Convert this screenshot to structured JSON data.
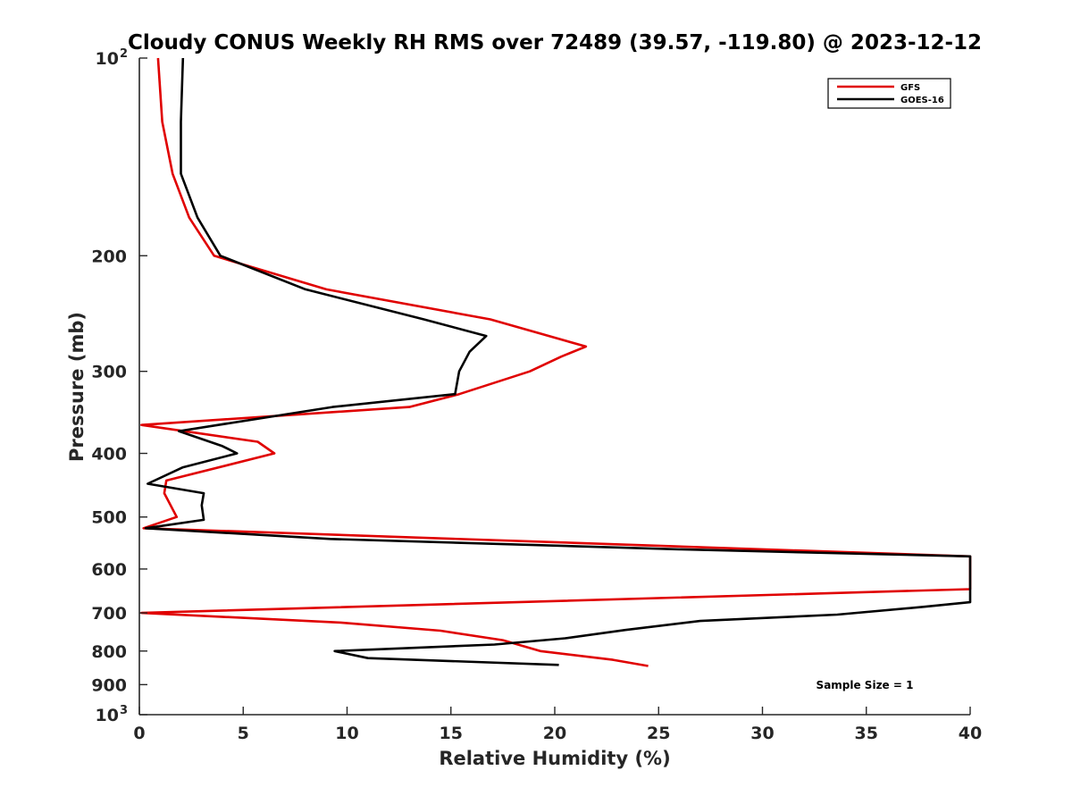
{
  "chart_data": {
    "type": "line",
    "title": "Cloudy CONUS Weekly RH RMS over 72489 (39.57, -119.80) @ 2023-12-12",
    "xlabel": "Relative Humidity (%)",
    "ylabel": "Pressure (mb)",
    "xlim": [
      0,
      40
    ],
    "ylim": [
      100,
      1000
    ],
    "y_scale": "log",
    "y_reversed": true,
    "x_ticks": [
      0,
      5,
      10,
      15,
      20,
      25,
      30,
      35,
      40
    ],
    "x_tick_labels": [
      "0",
      "5",
      "10",
      "15",
      "20",
      "25",
      "30",
      "35",
      "40"
    ],
    "y_ticks": [
      100,
      200,
      300,
      400,
      500,
      600,
      700,
      800,
      900,
      1000
    ],
    "y_tick_labels": [
      {
        "base": "10",
        "exp": "2"
      },
      {
        "base": "200"
      },
      {
        "base": "300"
      },
      {
        "base": "400"
      },
      {
        "base": "500"
      },
      {
        "base": "600"
      },
      {
        "base": "700"
      },
      {
        "base": "800"
      },
      {
        "base": "900"
      },
      {
        "base": "10",
        "exp": "3"
      }
    ],
    "grid": false,
    "legend_position": "top-right",
    "annotation": "Sample Size = 1",
    "series": [
      {
        "name": "GFS",
        "color": "#e00000",
        "points": [
          [
            0.9,
            100
          ],
          [
            1.1,
            125
          ],
          [
            1.6,
            150
          ],
          [
            2.4,
            175
          ],
          [
            3.6,
            200
          ],
          [
            9.0,
            225
          ],
          [
            16.9,
            250
          ],
          [
            21.5,
            275
          ],
          [
            20.3,
            285
          ],
          [
            18.8,
            300
          ],
          [
            15.4,
            325
          ],
          [
            13.0,
            340
          ],
          [
            0.1,
            362
          ],
          [
            5.7,
            384
          ],
          [
            6.5,
            400
          ],
          [
            1.3,
            440
          ],
          [
            1.2,
            460
          ],
          [
            1.8,
            500
          ],
          [
            0.2,
            520
          ],
          [
            40.0,
            574
          ],
          [
            40.0,
            644
          ],
          [
            0.1,
            700
          ],
          [
            9.7,
            724
          ],
          [
            14.5,
            745
          ],
          [
            17.5,
            770
          ],
          [
            19.3,
            800
          ],
          [
            22.8,
            825
          ],
          [
            24.5,
            843
          ]
        ]
      },
      {
        "name": "GOES-16",
        "color": "#000000",
        "points": [
          [
            2.1,
            100
          ],
          [
            2.0,
            125
          ],
          [
            2.0,
            150
          ],
          [
            2.8,
            175
          ],
          [
            3.9,
            200
          ],
          [
            8.0,
            225
          ],
          [
            13.7,
            250
          ],
          [
            16.7,
            265
          ],
          [
            15.9,
            280
          ],
          [
            15.4,
            300
          ],
          [
            15.2,
            325
          ],
          [
            9.3,
            340
          ],
          [
            1.9,
            370
          ],
          [
            4.0,
            390
          ],
          [
            4.7,
            400
          ],
          [
            2.1,
            420
          ],
          [
            0.4,
            445
          ],
          [
            3.1,
            460
          ],
          [
            3.0,
            480
          ],
          [
            3.1,
            505
          ],
          [
            0.3,
            520
          ],
          [
            9.2,
            540
          ],
          [
            26.0,
            560
          ],
          [
            40.0,
            574
          ],
          [
            40.0,
            674
          ],
          [
            37.8,
            685
          ],
          [
            33.6,
            704
          ],
          [
            27.0,
            720
          ],
          [
            23.4,
            743
          ],
          [
            20.5,
            765
          ],
          [
            17.1,
            782
          ],
          [
            9.4,
            800
          ],
          [
            11.0,
            820
          ],
          [
            20.2,
            840
          ]
        ]
      }
    ]
  }
}
